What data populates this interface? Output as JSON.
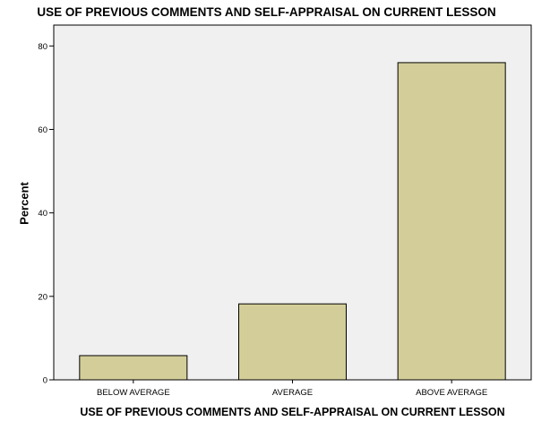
{
  "chart_data": {
    "type": "bar",
    "title": "USE OF PREVIOUS COMMENTS AND SELF-APPRAISAL ON CURRENT LESSON",
    "xlabel": "USE OF PREVIOUS COMMENTS AND SELF-APPRAISAL ON CURRENT LESSON",
    "ylabel": "Percent",
    "categories": [
      "BELOW AVERAGE",
      "AVERAGE",
      "ABOVE AVERAGE"
    ],
    "values": [
      5.8,
      18.2,
      76.0
    ],
    "ylim": [
      0,
      85
    ],
    "yticks": [
      "0",
      "20",
      "40",
      "60",
      "80"
    ],
    "grid": false,
    "bar_color": "#d3ce99",
    "plot_background": "#f0f0f0"
  }
}
